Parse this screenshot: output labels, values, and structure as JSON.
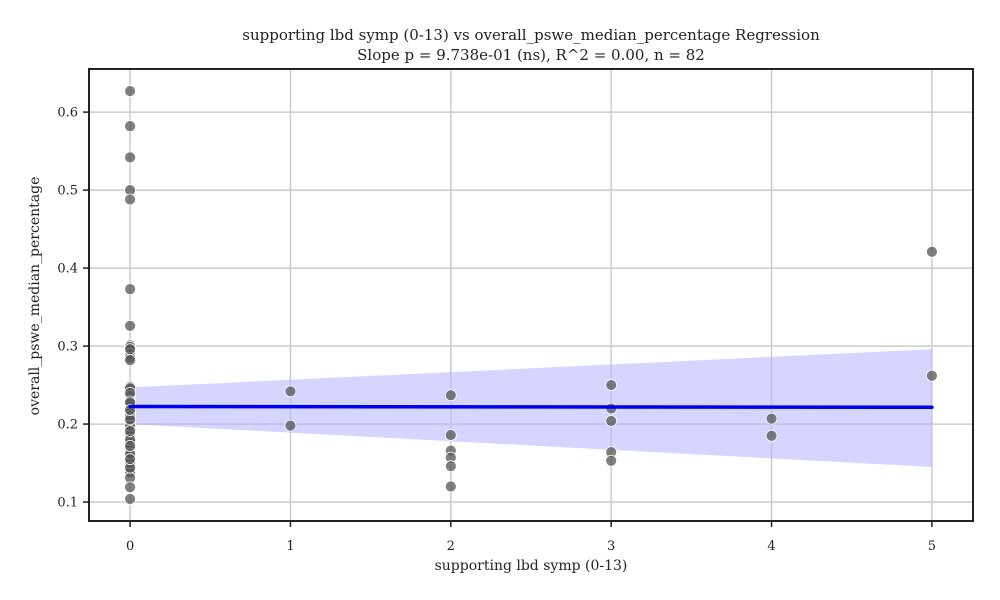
{
  "chart_data": {
    "type": "scatter",
    "title": "supporting lbd symp (0-13) vs overall_pswe_median_percentage Regression",
    "subtitle": "Slope p = 9.738e-01 (ns), R^2 = 0.00, n = 82",
    "xlabel": "supporting lbd symp (0-13)",
    "ylabel": "overall_pswe_median_percentage",
    "xlim": [
      -0.25,
      5.25
    ],
    "ylim": [
      0.077,
      0.654
    ],
    "xticks": [
      0,
      1,
      2,
      3,
      4,
      5
    ],
    "yticks": [
      0.1,
      0.2,
      0.3,
      0.4,
      0.5,
      0.6
    ],
    "grid": true,
    "point_color": "#555555",
    "line_color": "#0000ee",
    "band_color": "#b3b3ff",
    "points": [
      {
        "x": 0,
        "y": 0.627
      },
      {
        "x": 0,
        "y": 0.582
      },
      {
        "x": 0,
        "y": 0.542
      },
      {
        "x": 0,
        "y": 0.5
      },
      {
        "x": 0,
        "y": 0.488
      },
      {
        "x": 0,
        "y": 0.373
      },
      {
        "x": 0,
        "y": 0.326
      },
      {
        "x": 0,
        "y": 0.301
      },
      {
        "x": 0,
        "y": 0.299
      },
      {
        "x": 0,
        "y": 0.29
      },
      {
        "x": 0,
        "y": 0.285
      },
      {
        "x": 0,
        "y": 0.282
      },
      {
        "x": 0,
        "y": 0.248
      },
      {
        "x": 0,
        "y": 0.246
      },
      {
        "x": 0,
        "y": 0.236
      },
      {
        "x": 0,
        "y": 0.23
      },
      {
        "x": 0,
        "y": 0.222
      },
      {
        "x": 0,
        "y": 0.216
      },
      {
        "x": 0,
        "y": 0.212
      },
      {
        "x": 0,
        "y": 0.208
      },
      {
        "x": 0,
        "y": 0.205
      },
      {
        "x": 0,
        "y": 0.2
      },
      {
        "x": 0,
        "y": 0.196
      },
      {
        "x": 0,
        "y": 0.192
      },
      {
        "x": 0,
        "y": 0.188
      },
      {
        "x": 0,
        "y": 0.185
      },
      {
        "x": 0,
        "y": 0.182
      },
      {
        "x": 0,
        "y": 0.178
      },
      {
        "x": 0,
        "y": 0.174
      },
      {
        "x": 0,
        "y": 0.17
      },
      {
        "x": 0,
        "y": 0.167
      },
      {
        "x": 0,
        "y": 0.164
      },
      {
        "x": 0,
        "y": 0.16
      },
      {
        "x": 0,
        "y": 0.157
      },
      {
        "x": 0,
        "y": 0.154
      },
      {
        "x": 0,
        "y": 0.151
      },
      {
        "x": 0,
        "y": 0.148
      },
      {
        "x": 0,
        "y": 0.145
      },
      {
        "x": 0,
        "y": 0.142
      },
      {
        "x": 0,
        "y": 0.138
      },
      {
        "x": 0,
        "y": 0.131
      },
      {
        "x": 0,
        "y": 0.119
      },
      {
        "x": 0,
        "y": 0.104
      },
      {
        "x": 0,
        "y": 0.24
      },
      {
        "x": 0,
        "y": 0.226
      },
      {
        "x": 0,
        "y": 0.214
      },
      {
        "x": 0,
        "y": 0.203
      },
      {
        "x": 0,
        "y": 0.194
      },
      {
        "x": 0,
        "y": 0.186
      },
      {
        "x": 0,
        "y": 0.176
      },
      {
        "x": 0,
        "y": 0.168
      },
      {
        "x": 0,
        "y": 0.159
      },
      {
        "x": 0,
        "y": 0.15
      },
      {
        "x": 0,
        "y": 0.144
      },
      {
        "x": 0,
        "y": 0.228
      },
      {
        "x": 0,
        "y": 0.21
      },
      {
        "x": 0,
        "y": 0.198
      },
      {
        "x": 0,
        "y": 0.18
      },
      {
        "x": 0,
        "y": 0.162
      },
      {
        "x": 0,
        "y": 0.296
      },
      {
        "x": 1,
        "y": 0.242
      },
      {
        "x": 1,
        "y": 0.198
      },
      {
        "x": 2,
        "y": 0.237
      },
      {
        "x": 2,
        "y": 0.186
      },
      {
        "x": 2,
        "y": 0.166
      },
      {
        "x": 2,
        "y": 0.157
      },
      {
        "x": 2,
        "y": 0.146
      },
      {
        "x": 2,
        "y": 0.12
      },
      {
        "x": 3,
        "y": 0.25
      },
      {
        "x": 3,
        "y": 0.22
      },
      {
        "x": 3,
        "y": 0.204
      },
      {
        "x": 3,
        "y": 0.164
      },
      {
        "x": 3,
        "y": 0.153
      },
      {
        "x": 4,
        "y": 0.207
      },
      {
        "x": 4,
        "y": 0.185
      },
      {
        "x": 5,
        "y": 0.421
      },
      {
        "x": 5,
        "y": 0.262
      },
      {
        "x": 0,
        "y": 0.206
      },
      {
        "x": 0,
        "y": 0.191
      },
      {
        "x": 0,
        "y": 0.172
      },
      {
        "x": 0,
        "y": 0.155
      },
      {
        "x": 0,
        "y": 0.218
      }
    ],
    "regression": {
      "x": [
        0,
        5
      ],
      "y": [
        0.2225,
        0.2215
      ],
      "ci_lower": [
        0.2,
        0.145
      ],
      "ci_upper": [
        0.247,
        0.296
      ]
    }
  }
}
